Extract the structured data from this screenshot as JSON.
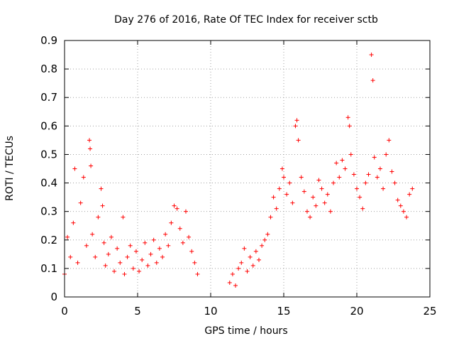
{
  "chart_data": {
    "type": "scatter",
    "title": "Day 276 of 2016, Rate Of TEC Index for receiver sctb",
    "xlabel": "GPS time / hours",
    "ylabel": "ROTI / TECUs",
    "xlim": [
      0,
      25
    ],
    "ylim": [
      0,
      0.9
    ],
    "x_ticks": [
      "0",
      "5",
      "10",
      "15",
      "20",
      "25"
    ],
    "y_ticks": [
      "0",
      "0.1",
      "0.2",
      "0.3",
      "0.4",
      "0.5",
      "0.6",
      "0.7",
      "0.8",
      "0.9"
    ],
    "grid": true,
    "marker": "+",
    "color": "#ff0000",
    "series": [
      {
        "name": "ROTI",
        "x": [
          0.0,
          0.2,
          0.4,
          0.6,
          0.7,
          0.9,
          1.1,
          1.3,
          1.5,
          1.7,
          1.75,
          1.8,
          1.9,
          2.1,
          2.3,
          2.5,
          2.6,
          2.7,
          2.8,
          3.0,
          3.2,
          3.4,
          3.6,
          3.8,
          4.0,
          4.1,
          4.3,
          4.5,
          4.7,
          4.9,
          5.1,
          5.3,
          5.5,
          5.7,
          5.9,
          6.1,
          6.3,
          6.5,
          6.7,
          6.9,
          7.1,
          7.3,
          7.5,
          7.7,
          7.9,
          8.1,
          8.3,
          8.5,
          8.7,
          8.9,
          9.1,
          11.3,
          11.5,
          11.7,
          11.9,
          12.1,
          12.3,
          12.5,
          12.7,
          12.9,
          13.1,
          13.3,
          13.5,
          13.7,
          13.9,
          14.1,
          14.3,
          14.5,
          14.7,
          14.9,
          15.0,
          15.2,
          15.4,
          15.6,
          15.8,
          15.9,
          16.0,
          16.2,
          16.4,
          16.6,
          16.8,
          17.0,
          17.2,
          17.4,
          17.6,
          17.8,
          18.0,
          18.2,
          18.4,
          18.6,
          18.8,
          19.0,
          19.2,
          19.4,
          19.5,
          19.6,
          19.8,
          20.0,
          20.2,
          20.4,
          20.6,
          20.8,
          21.0,
          21.1,
          21.2,
          21.4,
          21.6,
          21.8,
          22.0,
          22.2,
          22.4,
          22.6,
          22.8,
          23.0,
          23.2,
          23.4,
          23.6,
          23.8
        ],
        "y": [
          0.08,
          0.21,
          0.14,
          0.26,
          0.45,
          0.12,
          0.33,
          0.42,
          0.18,
          0.55,
          0.52,
          0.46,
          0.22,
          0.14,
          0.28,
          0.38,
          0.32,
          0.19,
          0.11,
          0.15,
          0.21,
          0.09,
          0.17,
          0.12,
          0.28,
          0.08,
          0.14,
          0.18,
          0.1,
          0.16,
          0.09,
          0.13,
          0.19,
          0.11,
          0.15,
          0.2,
          0.12,
          0.17,
          0.14,
          0.22,
          0.18,
          0.26,
          0.32,
          0.31,
          0.24,
          0.19,
          0.3,
          0.21,
          0.16,
          0.12,
          0.08,
          0.05,
          0.08,
          0.04,
          0.1,
          0.12,
          0.17,
          0.09,
          0.14,
          0.11,
          0.16,
          0.13,
          0.18,
          0.2,
          0.22,
          0.28,
          0.35,
          0.31,
          0.38,
          0.45,
          0.42,
          0.36,
          0.4,
          0.33,
          0.6,
          0.62,
          0.55,
          0.42,
          0.37,
          0.3,
          0.28,
          0.35,
          0.32,
          0.41,
          0.38,
          0.33,
          0.36,
          0.3,
          0.4,
          0.47,
          0.42,
          0.48,
          0.45,
          0.63,
          0.6,
          0.5,
          0.43,
          0.38,
          0.35,
          0.31,
          0.4,
          0.43,
          0.85,
          0.76,
          0.49,
          0.42,
          0.45,
          0.38,
          0.5,
          0.55,
          0.44,
          0.4,
          0.34,
          0.32,
          0.3,
          0.28,
          0.36,
          0.38
        ]
      }
    ]
  }
}
